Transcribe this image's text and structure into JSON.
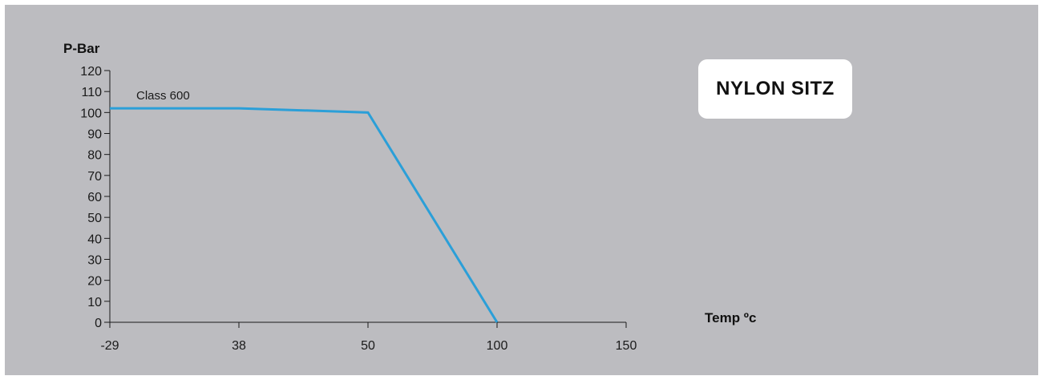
{
  "badge": {
    "text": "NYLON SITZ"
  },
  "colors": {
    "background_panel": "#bcbcc0",
    "series_line": "#2b9fd8",
    "axis": "#1a1a1a",
    "badge_background": "#ffffff"
  },
  "chart_data": {
    "type": "line",
    "title": "",
    "ylabel": "P-Bar",
    "xlabel": "Temp ºc",
    "x_tick_labels": [
      "-29",
      "38",
      "50",
      "100",
      "150"
    ],
    "y_ticks": [
      0,
      10,
      20,
      30,
      40,
      50,
      60,
      70,
      80,
      90,
      100,
      110,
      120
    ],
    "ylim": [
      0,
      120
    ],
    "grid": false,
    "series": [
      {
        "name": "Class 600",
        "points": [
          {
            "x": "-29",
            "y": 102
          },
          {
            "x": "38",
            "y": 102
          },
          {
            "x": "50",
            "y": 100
          },
          {
            "x": "100",
            "y": 0
          }
        ]
      }
    ]
  }
}
